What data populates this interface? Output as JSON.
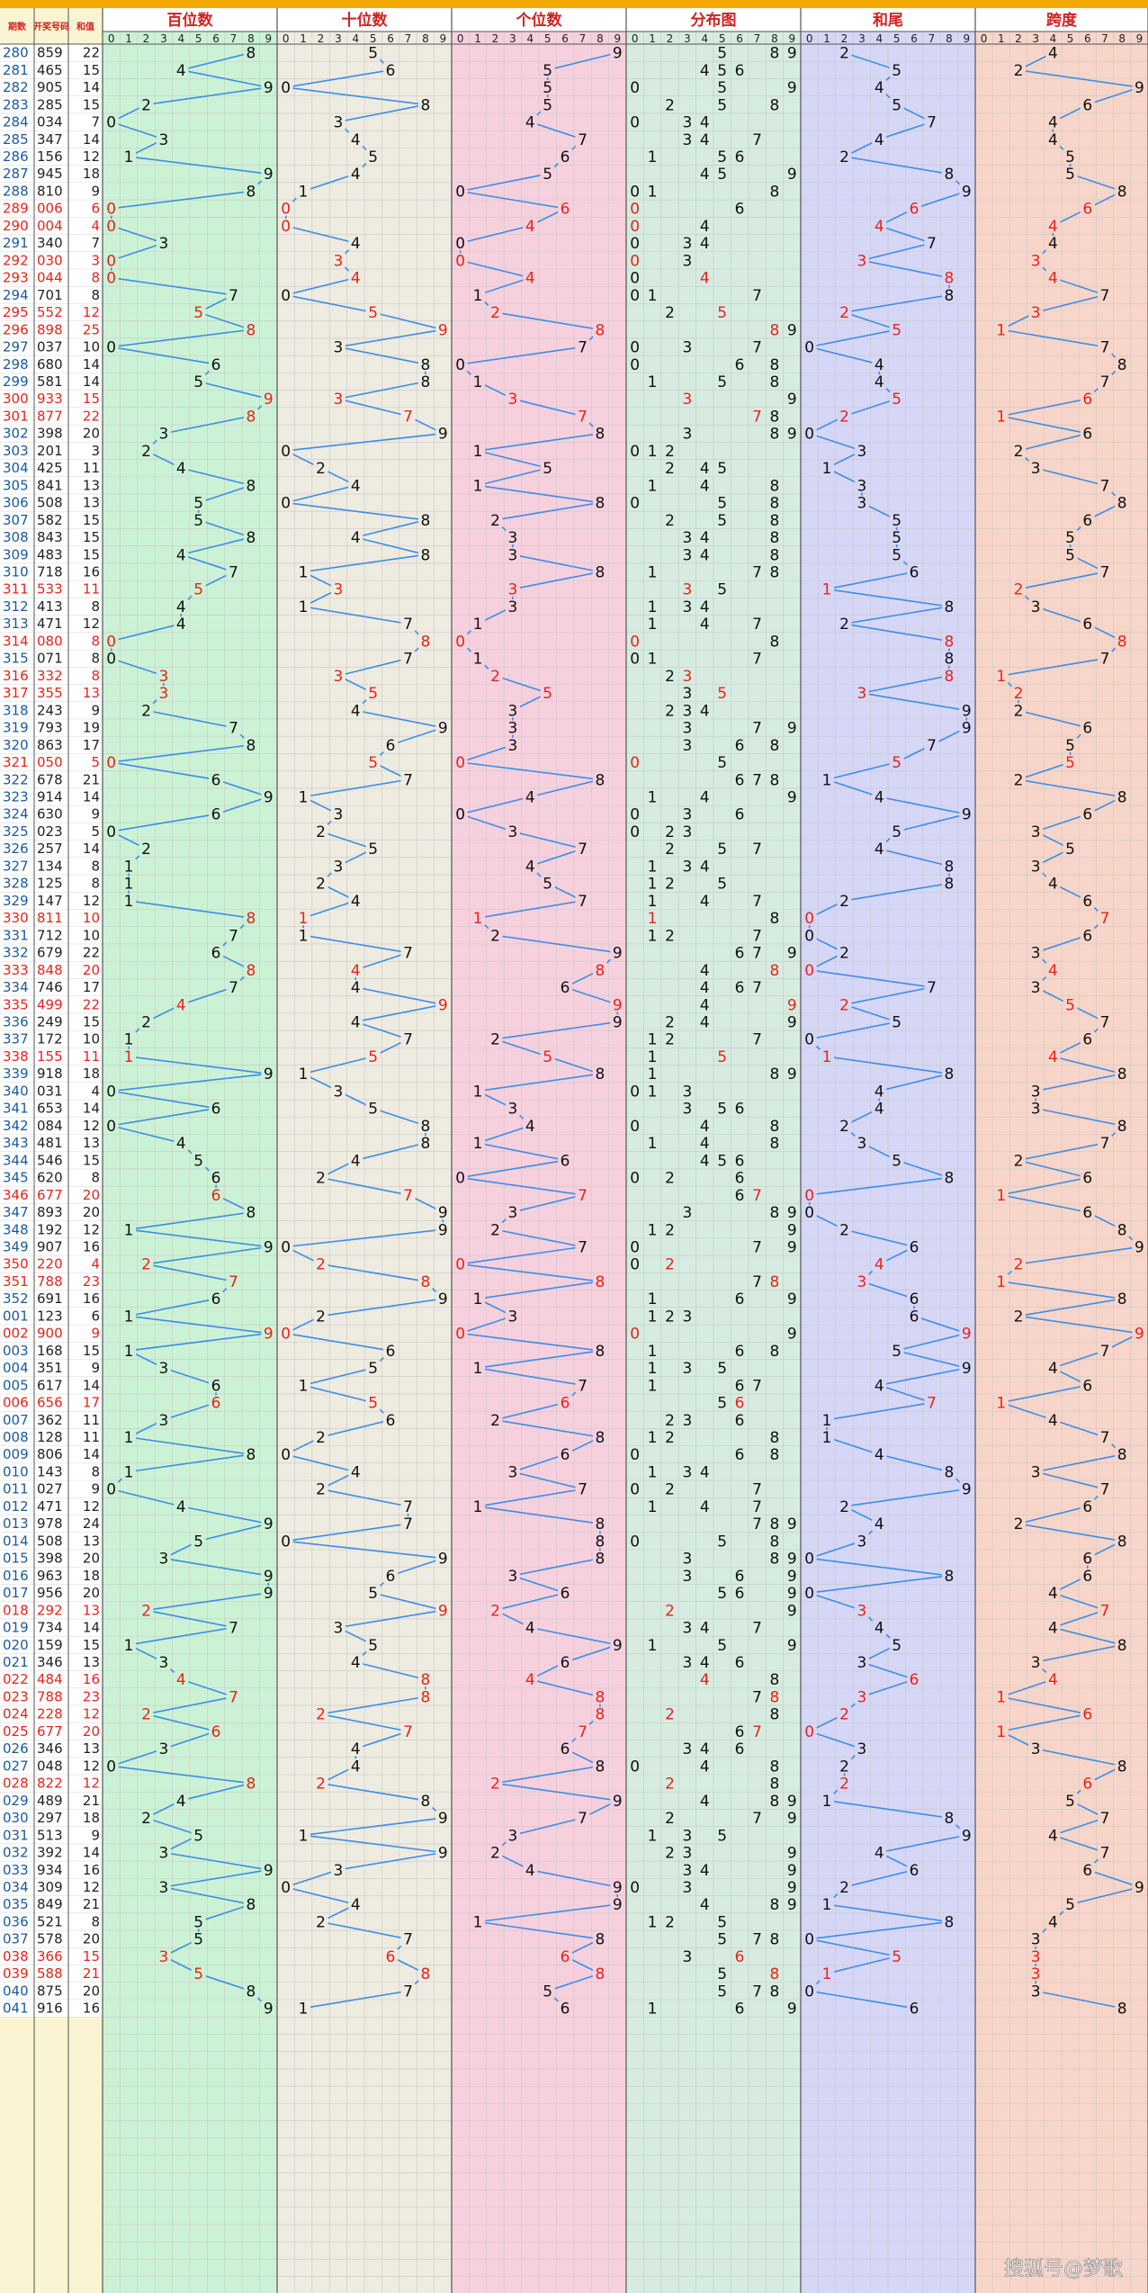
{
  "header": {
    "col_labels": [
      "期数",
      "开奖号码",
      "和值"
    ],
    "section_titles": [
      "百位数",
      "十位数",
      "个位数",
      "分布图",
      "和尾",
      "跨度"
    ],
    "digits": [
      "0",
      "1",
      "2",
      "3",
      "4",
      "5",
      "6",
      "7",
      "8",
      "9"
    ]
  },
  "watermark": "搜狐号@梦歌",
  "colors": {
    "hundreds_bg": "#ccf2d5",
    "tens_bg": "#eeebe0",
    "units_bg": "#f7d0de",
    "distribution_bg": "#d6ece0",
    "sum_tail_bg": "#d6d6f7",
    "span_bg": "#f8d5c9",
    "line": "#3c8ee6",
    "highlight": "#e8231c",
    "top_bar": "#f2a800",
    "left_panel": "#fbf4d2"
  },
  "chart_data": {
    "type": "table",
    "title": "",
    "columns": [
      "期数",
      "开奖号码",
      "和值",
      "百位数",
      "十位数",
      "个位数",
      "分布图",
      "和尾",
      "跨度"
    ],
    "rows": [
      {
        "period": "280",
        "number": "859",
        "sum": "22"
      },
      {
        "period": "281",
        "number": "465",
        "sum": "15"
      },
      {
        "period": "282",
        "number": "905",
        "sum": "14"
      },
      {
        "period": "283",
        "number": "285",
        "sum": "15"
      },
      {
        "period": "284",
        "number": "034",
        "sum": "7"
      },
      {
        "period": "285",
        "number": "347",
        "sum": "14"
      },
      {
        "period": "286",
        "number": "156",
        "sum": "12"
      },
      {
        "period": "287",
        "number": "945",
        "sum": "18"
      },
      {
        "period": "288",
        "number": "810",
        "sum": "9"
      },
      {
        "period": "289",
        "number": "006",
        "sum": "6"
      },
      {
        "period": "290",
        "number": "004",
        "sum": "4"
      },
      {
        "period": "291",
        "number": "340",
        "sum": "7"
      },
      {
        "period": "292",
        "number": "030",
        "sum": "3"
      },
      {
        "period": "293",
        "number": "044",
        "sum": "8"
      },
      {
        "period": "294",
        "number": "701",
        "sum": "8"
      },
      {
        "period": "295",
        "number": "552",
        "sum": "12"
      },
      {
        "period": "296",
        "number": "898",
        "sum": "25"
      },
      {
        "period": "297",
        "number": "037",
        "sum": "10"
      },
      {
        "period": "298",
        "number": "680",
        "sum": "14"
      },
      {
        "period": "299",
        "number": "581",
        "sum": "14"
      },
      {
        "period": "300",
        "number": "933",
        "sum": "15"
      },
      {
        "period": "301",
        "number": "877",
        "sum": "22"
      },
      {
        "period": "302",
        "number": "398",
        "sum": "20"
      },
      {
        "period": "303",
        "number": "201",
        "sum": "3"
      },
      {
        "period": "304",
        "number": "425",
        "sum": "11"
      },
      {
        "period": "305",
        "number": "841",
        "sum": "13"
      },
      {
        "period": "306",
        "number": "508",
        "sum": "13"
      },
      {
        "period": "307",
        "number": "582",
        "sum": "15"
      },
      {
        "period": "308",
        "number": "843",
        "sum": "15"
      },
      {
        "period": "309",
        "number": "483",
        "sum": "15"
      },
      {
        "period": "310",
        "number": "718",
        "sum": "16"
      },
      {
        "period": "311",
        "number": "533",
        "sum": "11"
      },
      {
        "period": "312",
        "number": "413",
        "sum": "8"
      },
      {
        "period": "313",
        "number": "471",
        "sum": "12"
      },
      {
        "period": "314",
        "number": "080",
        "sum": "8"
      },
      {
        "period": "315",
        "number": "071",
        "sum": "8"
      },
      {
        "period": "316",
        "number": "332",
        "sum": "8"
      },
      {
        "period": "317",
        "number": "355",
        "sum": "13"
      },
      {
        "period": "318",
        "number": "243",
        "sum": "9"
      },
      {
        "period": "319",
        "number": "793",
        "sum": "19"
      },
      {
        "period": "320",
        "number": "863",
        "sum": "17"
      },
      {
        "period": "321",
        "number": "050",
        "sum": "5"
      },
      {
        "period": "322",
        "number": "678",
        "sum": "21"
      },
      {
        "period": "323",
        "number": "914",
        "sum": "14"
      },
      {
        "period": "324",
        "number": "630",
        "sum": "9"
      },
      {
        "period": "325",
        "number": "023",
        "sum": "5"
      },
      {
        "period": "326",
        "number": "257",
        "sum": "14"
      },
      {
        "period": "327",
        "number": "134",
        "sum": "8"
      },
      {
        "period": "328",
        "number": "125",
        "sum": "8"
      },
      {
        "period": "329",
        "number": "147",
        "sum": "12"
      },
      {
        "period": "330",
        "number": "811",
        "sum": "10"
      },
      {
        "period": "331",
        "number": "712",
        "sum": "10"
      },
      {
        "period": "332",
        "number": "679",
        "sum": "22"
      },
      {
        "period": "333",
        "number": "848",
        "sum": "20"
      },
      {
        "period": "334",
        "number": "746",
        "sum": "17"
      },
      {
        "period": "335",
        "number": "499",
        "sum": "22"
      },
      {
        "period": "336",
        "number": "249",
        "sum": "15"
      },
      {
        "period": "337",
        "number": "172",
        "sum": "10"
      },
      {
        "period": "338",
        "number": "155",
        "sum": "11"
      },
      {
        "period": "339",
        "number": "918",
        "sum": "18"
      },
      {
        "period": "340",
        "number": "031",
        "sum": "4"
      },
      {
        "period": "341",
        "number": "653",
        "sum": "14"
      },
      {
        "period": "342",
        "number": "084",
        "sum": "12"
      },
      {
        "period": "343",
        "number": "481",
        "sum": "13"
      },
      {
        "period": "344",
        "number": "546",
        "sum": "15"
      },
      {
        "period": "345",
        "number": "620",
        "sum": "8"
      },
      {
        "period": "346",
        "number": "677",
        "sum": "20"
      },
      {
        "period": "347",
        "number": "893",
        "sum": "20"
      },
      {
        "period": "348",
        "number": "192",
        "sum": "12"
      },
      {
        "period": "349",
        "number": "907",
        "sum": "16"
      },
      {
        "period": "350",
        "number": "220",
        "sum": "4"
      },
      {
        "period": "351",
        "number": "788",
        "sum": "23"
      },
      {
        "period": "352",
        "number": "691",
        "sum": "16"
      },
      {
        "period": "001",
        "number": "123",
        "sum": "6"
      },
      {
        "period": "002",
        "number": "900",
        "sum": "9"
      },
      {
        "period": "003",
        "number": "168",
        "sum": "15"
      },
      {
        "period": "004",
        "number": "351",
        "sum": "9"
      },
      {
        "period": "005",
        "number": "617",
        "sum": "14"
      },
      {
        "period": "006",
        "number": "656",
        "sum": "17"
      },
      {
        "period": "007",
        "number": "362",
        "sum": "11"
      },
      {
        "period": "008",
        "number": "128",
        "sum": "11"
      },
      {
        "period": "009",
        "number": "806",
        "sum": "14"
      },
      {
        "period": "010",
        "number": "143",
        "sum": "8"
      },
      {
        "period": "011",
        "number": "027",
        "sum": "9"
      },
      {
        "period": "012",
        "number": "471",
        "sum": "12"
      },
      {
        "period": "013",
        "number": "978",
        "sum": "24"
      },
      {
        "period": "014",
        "number": "508",
        "sum": "13"
      },
      {
        "period": "015",
        "number": "398",
        "sum": "20"
      },
      {
        "period": "016",
        "number": "963",
        "sum": "18"
      },
      {
        "period": "017",
        "number": "956",
        "sum": "20"
      },
      {
        "period": "018",
        "number": "292",
        "sum": "13"
      },
      {
        "period": "019",
        "number": "734",
        "sum": "14"
      },
      {
        "period": "020",
        "number": "159",
        "sum": "15"
      },
      {
        "period": "021",
        "number": "346",
        "sum": "13"
      },
      {
        "period": "022",
        "number": "484",
        "sum": "16"
      },
      {
        "period": "023",
        "number": "788",
        "sum": "23"
      },
      {
        "period": "024",
        "number": "228",
        "sum": "12"
      },
      {
        "period": "025",
        "number": "677",
        "sum": "20"
      },
      {
        "period": "026",
        "number": "346",
        "sum": "13"
      },
      {
        "period": "027",
        "number": "048",
        "sum": "12"
      },
      {
        "period": "028",
        "number": "822",
        "sum": "12"
      },
      {
        "period": "029",
        "number": "489",
        "sum": "21"
      },
      {
        "period": "030",
        "number": "297",
        "sum": "18"
      },
      {
        "period": "031",
        "number": "513",
        "sum": "9"
      },
      {
        "period": "032",
        "number": "392",
        "sum": "14"
      },
      {
        "period": "033",
        "number": "934",
        "sum": "16"
      },
      {
        "period": "034",
        "number": "309",
        "sum": "12"
      },
      {
        "period": "035",
        "number": "849",
        "sum": "21"
      },
      {
        "period": "036",
        "number": "521",
        "sum": "8"
      },
      {
        "period": "037",
        "number": "578",
        "sum": "20"
      },
      {
        "period": "038",
        "number": "366",
        "sum": "15"
      },
      {
        "period": "039",
        "number": "588",
        "sum": "21"
      },
      {
        "period": "040",
        "number": "875",
        "sum": "20"
      },
      {
        "period": "041",
        "number": "916",
        "sum": "16"
      }
    ]
  }
}
